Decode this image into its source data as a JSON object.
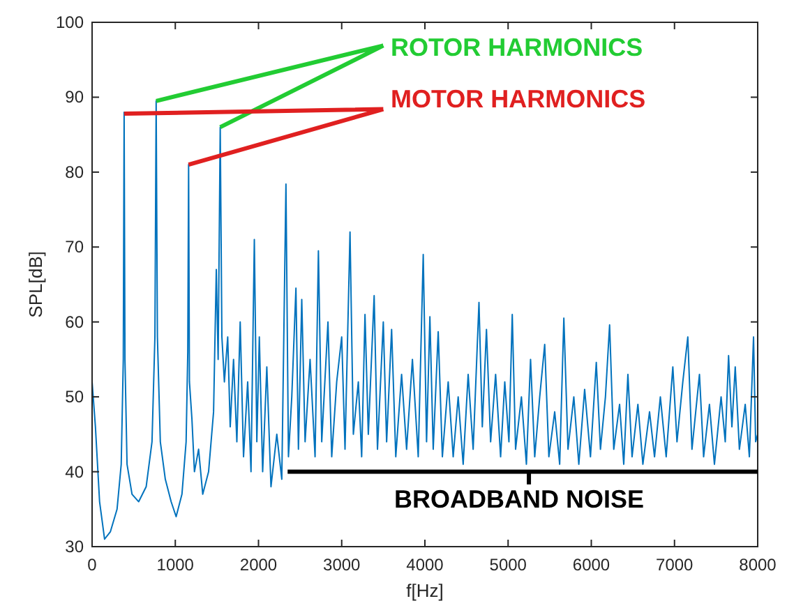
{
  "chart_data": {
    "type": "line",
    "xlabel": "f[Hz]",
    "ylabel": "SPL[dB]",
    "xlim": [
      0,
      8000
    ],
    "ylim": [
      30,
      100
    ],
    "xticks": [
      0,
      1000,
      2000,
      3000,
      4000,
      5000,
      6000,
      7000,
      8000
    ],
    "yticks": [
      30,
      40,
      50,
      60,
      70,
      80,
      90,
      100
    ],
    "grid": false,
    "line_style": "solid",
    "marker": "none",
    "annotations": [
      "ROTOR HARMONICS",
      "MOTOR HARMONICS",
      "BROADBAND NOISE"
    ],
    "series": [
      {
        "color": "#0072bd",
        "x": [
          0,
          40,
          90,
          150,
          220,
          300,
          350,
          375,
          385,
          395,
          420,
          480,
          560,
          650,
          720,
          755,
          770,
          785,
          820,
          880,
          950,
          1010,
          1080,
          1130,
          1150,
          1160,
          1170,
          1200,
          1230,
          1280,
          1330,
          1400,
          1460,
          1493,
          1515,
          1540,
          1560,
          1590,
          1630,
          1660,
          1700,
          1740,
          1780,
          1820,
          1870,
          1910,
          1950,
          1980,
          2010,
          2050,
          2100,
          2150,
          2220,
          2280,
          2330,
          2360,
          2400,
          2450,
          2480,
          2520,
          2560,
          2620,
          2680,
          2720,
          2760,
          2835,
          2880,
          2940,
          3000,
          3040,
          3100,
          3140,
          3200,
          3240,
          3280,
          3320,
          3390,
          3430,
          3500,
          3540,
          3600,
          3650,
          3720,
          3780,
          3850,
          3920,
          3980,
          4020,
          4060,
          4100,
          4160,
          4210,
          4280,
          4340,
          4400,
          4460,
          4520,
          4580,
          4650,
          4690,
          4740,
          4790,
          4850,
          4910,
          4960,
          5010,
          5050,
          5090,
          5160,
          5220,
          5270,
          5320,
          5380,
          5440,
          5490,
          5560,
          5620,
          5670,
          5720,
          5790,
          5850,
          5920,
          5990,
          6060,
          6110,
          6170,
          6220,
          6270,
          6340,
          6390,
          6440,
          6490,
          6560,
          6620,
          6700,
          6760,
          6830,
          6900,
          6980,
          7030,
          7100,
          7160,
          7210,
          7300,
          7350,
          7420,
          7480,
          7560,
          7610,
          7650,
          7690,
          7730,
          7780,
          7850,
          7900,
          7950,
          7975,
          8000
        ],
        "values": [
          52,
          46,
          36,
          31,
          32,
          35,
          41,
          55,
          88,
          55,
          41,
          37,
          36,
          38,
          44,
          58,
          89.5,
          58,
          44,
          39,
          36,
          34,
          37,
          44,
          56,
          81,
          52,
          47,
          40,
          43,
          37,
          40,
          48,
          67,
          55,
          86,
          58,
          52,
          58,
          46,
          55,
          44,
          60,
          42,
          52,
          40,
          71,
          44,
          58,
          40,
          54,
          38,
          45,
          39,
          78.4,
          42,
          50,
          64.5,
          43,
          63,
          44,
          55,
          42,
          69.5,
          44,
          60,
          42,
          52,
          58,
          43,
          72,
          45,
          52,
          42,
          61,
          45,
          63.5,
          43,
          60,
          44,
          59,
          42,
          53,
          43,
          55,
          42,
          69,
          44,
          60.7,
          43,
          58.7,
          42,
          52,
          42,
          50,
          41,
          53,
          43,
          62.6,
          46,
          59,
          44,
          53,
          42,
          52,
          44,
          61,
          43,
          50,
          41,
          55,
          42,
          50,
          57,
          42,
          48,
          41,
          60.5,
          43,
          50,
          41,
          51,
          42,
          54.6,
          43,
          50,
          59.6,
          43,
          49,
          41,
          53,
          42,
          49,
          41,
          48,
          42,
          50,
          42,
          54,
          44,
          52,
          58,
          43,
          53,
          42,
          49,
          41,
          50,
          44,
          55.5,
          46,
          54,
          43,
          49,
          42,
          58,
          44,
          45
        ]
      }
    ]
  }
}
